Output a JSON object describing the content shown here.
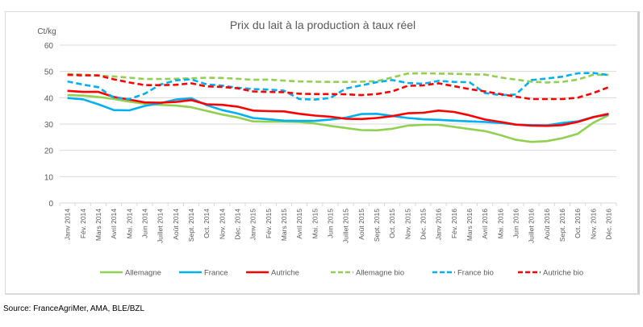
{
  "chart_data": {
    "type": "line",
    "title": "Prix du lait à la production à taux réel",
    "ylabel": "Ct/kg",
    "xlabel": "",
    "ylim": [
      0,
      60
    ],
    "yticks": [
      0,
      10,
      20,
      30,
      40,
      50,
      60
    ],
    "grid": true,
    "legend_position": "bottom",
    "categories": [
      "Janv 2014",
      "Fév. 2014",
      "Mars 2014",
      "Avril 2014",
      "Mai. 2014",
      "Juin 2014",
      "Juillet 2014",
      "Août 2014",
      "Sept. 2014",
      "Oct. 2014",
      "Nov. 2014",
      "Déc. 2014",
      "Janv 2015",
      "Fév. 2015",
      "Mars 2015",
      "Avril 2015",
      "Mai. 2015",
      "Juin 2015",
      "Juillet 2015",
      "Août 2015",
      "Sept. 2015",
      "Oct. 2015",
      "Nov. 2015",
      "Déc. 2015",
      "Janv 2016",
      "Fév. 2016",
      "Mars 2016",
      "Avril 2016",
      "Mai. 2016",
      "Juin 2016",
      "Juillet 2016",
      "Août 2016",
      "Sept. 2016",
      "Oct. 2016",
      "Nov. 2016",
      "Déc. 2016"
    ],
    "series": [
      {
        "name": "Allemagne",
        "color": "#92d050",
        "dashed": false,
        "values": [
          41,
          40.8,
          40.3,
          39.5,
          38.5,
          37.7,
          37.3,
          37,
          36.4,
          35,
          33.6,
          32.5,
          31,
          30.9,
          30.9,
          30.8,
          30.2,
          29.3,
          28.5,
          27.7,
          27.6,
          28.2,
          29.4,
          29.7,
          29.7,
          28.9,
          28.1,
          27.3,
          25.8,
          24,
          23.2,
          23.5,
          24.6,
          26.3,
          30.5,
          33.4
        ]
      },
      {
        "name": "France",
        "color": "#00b0f0",
        "dashed": false,
        "values": [
          39.9,
          39.4,
          37.5,
          35.3,
          35.2,
          36.9,
          37.9,
          39.3,
          39.8,
          37.2,
          35.3,
          34,
          32.3,
          31.8,
          31.3,
          31.2,
          31.2,
          31.7,
          32.4,
          33.8,
          33.9,
          33.1,
          32.3,
          31.8,
          31.6,
          31.3,
          31,
          30.8,
          30.4,
          29.8,
          29.6,
          29.5,
          30.4,
          31,
          32.7,
          33.6
        ]
      },
      {
        "name": "Autriche",
        "color": "#ff0000",
        "dashed": false,
        "values": [
          42.6,
          42.2,
          42.2,
          40.3,
          39.3,
          38.2,
          38.1,
          38.4,
          39.1,
          37.5,
          37.3,
          36.6,
          35.1,
          34.9,
          34.8,
          33.9,
          33.2,
          32.8,
          32,
          31.9,
          32.3,
          33,
          34.1,
          34.3,
          35.1,
          34.6,
          33.3,
          31.7,
          30.8,
          29.8,
          29.4,
          29.3,
          29.6,
          30.8,
          32.6,
          33.9
        ]
      },
      {
        "name": "Allemagne bio",
        "color": "#92d050",
        "dashed": true,
        "values": [
          49,
          48.8,
          48.4,
          48.1,
          47.6,
          47.1,
          47.1,
          47.2,
          47.4,
          47.6,
          47.5,
          47.2,
          46.8,
          46.9,
          46.5,
          46.2,
          46.1,
          46,
          46,
          46.1,
          46.3,
          47.7,
          49.2,
          49.3,
          49.2,
          49.1,
          48.9,
          48.8,
          47.7,
          46.9,
          46.1,
          45.8,
          46,
          46.9,
          48.7,
          48.7
        ]
      },
      {
        "name": "France bio",
        "color": "#00b0f0",
        "dashed": true,
        "values": [
          46.2,
          45,
          44,
          40,
          39.5,
          41.5,
          45,
          46.6,
          47,
          45.1,
          44.6,
          43.8,
          43.3,
          43.1,
          42.7,
          39.5,
          39.3,
          39.9,
          43.5,
          44.7,
          45.9,
          46.7,
          45.6,
          45.3,
          46.4,
          46,
          45.9,
          41.8,
          41,
          41.2,
          46.7,
          47.3,
          48,
          49.3,
          49.4,
          48.6
        ]
      },
      {
        "name": "Autriche bio",
        "color": "#ff0000",
        "dashed": true,
        "values": [
          48.7,
          48.5,
          48.5,
          47,
          45.8,
          44.8,
          44.8,
          44.9,
          45.5,
          44.3,
          44.1,
          43.6,
          42.4,
          42.2,
          42.1,
          41.5,
          41.4,
          41.4,
          41.3,
          41,
          41.4,
          42.4,
          44.5,
          44.7,
          45.5,
          44.4,
          43.3,
          42.4,
          41.4,
          40.4,
          39.5,
          39.5,
          39.5,
          40,
          41.8,
          44
        ]
      }
    ]
  },
  "source": "Source: FranceAgriMer, AMA, BLE/BZL"
}
